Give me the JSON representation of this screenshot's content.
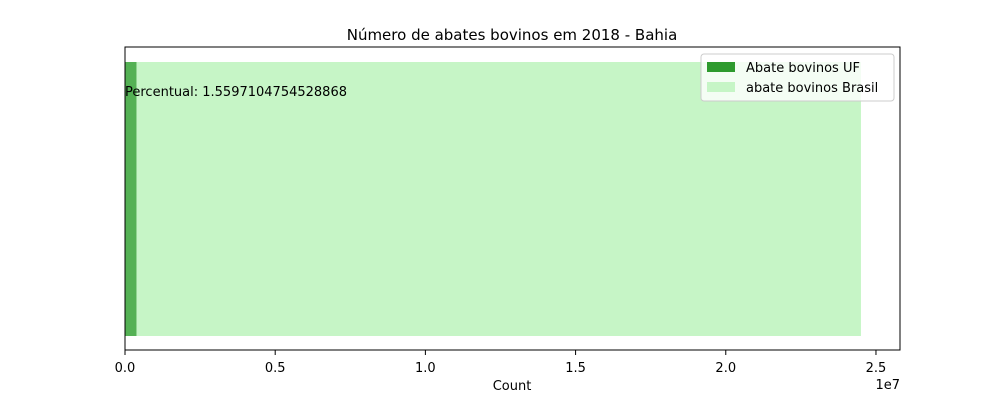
{
  "chart_data": {
    "type": "bar",
    "orientation": "horizontal",
    "title": "Número de abates bovinos em 2018 - Bahia",
    "xlabel": "Count",
    "ylabel": "",
    "xlim": [
      0,
      25800000
    ],
    "x_scale_label": "1e7",
    "x_ticks": [
      0,
      5000000,
      10000000,
      15000000,
      20000000,
      25000000
    ],
    "x_tick_labels": [
      "0.0",
      "0.5",
      "1.0",
      "1.5",
      "2.0",
      "2.5"
    ],
    "grid": false,
    "legend_position": "top-right",
    "series": [
      {
        "name": "Abate bovinos UF",
        "value": 382000,
        "color": "#2e9a2e",
        "alpha": 0.75
      },
      {
        "name": "abate bovinos Brasil",
        "value": 24500000,
        "color": "#c6f5c6",
        "alpha": 1.0
      }
    ],
    "annotation": "Percentual: 1.5597104754528868"
  }
}
